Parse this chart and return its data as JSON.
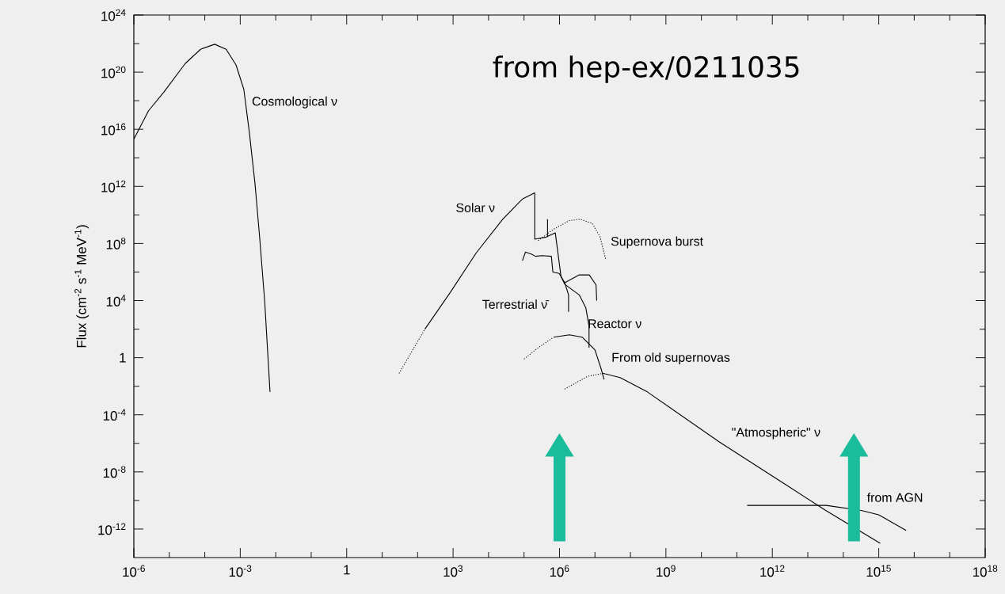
{
  "chart_data": {
    "type": "line",
    "log": "xy",
    "ylabel": "Flux  (cm$^{-2}$ s$^{-1}$ MeV$^{-1}$)",
    "xlim": [
      1e-06,
      1e+18
    ],
    "ylim": [
      1e-14,
      1e+24
    ],
    "xticks": [
      {
        "value": 1e-06,
        "label": "10$^{-6}$"
      },
      {
        "value": 1e-05,
        "label": null
      },
      {
        "value": 0.0001,
        "label": null
      },
      {
        "value": 0.001,
        "label": "10$^{-3}$"
      },
      {
        "value": 0.01,
        "label": null
      },
      {
        "value": 0.1,
        "label": null
      },
      1,
      {
        "value": 10,
        "label": null
      },
      {
        "value": 100,
        "label": null
      },
      {
        "value": 1000,
        "label": "10$^{3}$"
      },
      {
        "value": 10000,
        "label": null
      },
      {
        "value": 100000,
        "label": null
      },
      {
        "value": 1000000.0,
        "label": "10$^{6}$"
      },
      {
        "value": 10000000.0,
        "label": null
      },
      {
        "value": 100000000.0,
        "label": null
      },
      {
        "value": 1000000000.0,
        "label": "10$^{9}$"
      },
      {
        "value": 10000000000.0,
        "label": null
      },
      {
        "value": 100000000000.0,
        "label": null
      },
      {
        "value": 1000000000000.0,
        "label": "10$^{12}$"
      },
      {
        "value": 10000000000000.0,
        "label": null
      },
      {
        "value": 100000000000000.0,
        "label": null
      },
      {
        "value": 1000000000000000.0,
        "label": "10$^{15}$"
      },
      {
        "value": 1e+16,
        "label": null
      },
      {
        "value": 1e+17,
        "label": null
      },
      {
        "value": 1e+18,
        "label": "10$^{18}$"
      }
    ],
    "yticks": [
      {
        "value": 1e-12,
        "label": "10$^{-12}$"
      },
      {
        "value": 1e-10,
        "label": null
      },
      {
        "value": 1e-08,
        "label": "10$^{-8}$"
      },
      {
        "value": 1e-06,
        "label": null
      },
      {
        "value": 0.0001,
        "label": "10$^{-4}$"
      },
      {
        "value": 0.01,
        "label": null
      },
      1,
      {
        "value": 100,
        "label": null
      },
      {
        "value": 10000,
        "label": "10$^{4}$"
      },
      {
        "value": 1000000.0,
        "label": null
      },
      {
        "value": 100000000.0,
        "label": "10$^{8}$"
      },
      {
        "value": 10000000000.0,
        "label": null
      },
      {
        "value": 1000000000000.0,
        "label": "10$^{12}$"
      },
      {
        "value": 100000000000000.0,
        "label": null
      },
      {
        "value": 1e+16,
        "label": "10$^{16}$"
      },
      {
        "value": 1e+18,
        "label": null
      },
      {
        "value": 1e+20,
        "label": "10$^{20}$"
      },
      {
        "value": 1e+22,
        "label": null
      },
      {
        "value": 1e+24,
        "label": "10$^{24}$"
      }
    ],
    "series": [
      {
        "color": "#000000",
        "line_style": "solid",
        "x": [
          1e-06,
          2.6e-06,
          7e-06,
          2.8e-05,
          7.6e-05,
          0.00019,
          0.0004,
          0.00076,
          0.00126,
          0.0018,
          0.0026,
          0.0035,
          0.0049,
          0.0069
        ],
        "values": [
          2000000000000000.0,
          2e+17,
          4e+18,
          4e+20,
          4e+21,
          9e+21,
          4e+21,
          3.2e+20,
          6.3e+18,
          6300000000000000.0,
          1600000000000.0,
          320000000.0,
          8000,
          0.004
        ]
      },
      {
        "color": "#000000",
        "line_style": "dotted",
        "x": [
          30,
          160
        ],
        "values": [
          0.08,
          100
        ]
      },
      {
        "color": "#000000",
        "line_style": "solid",
        "x": [
          160,
          850,
          4500,
          25000,
          90000,
          200000,
          200000,
          420000,
          760000,
          1100000.0,
          1400000.0
        ],
        "values": [
          100,
          40000,
          22000000.0,
          5000000000.0,
          130000000000.0,
          350000000000.0,
          200000000.0,
          280000000.0,
          560000000.0,
          500000,
          140000
        ]
      },
      {
        "color": "#000000",
        "line_style": "solid",
        "x": [
          460000,
          460000
        ],
        "values": [
          280000000.0,
          5000000000.0
        ]
      },
      {
        "color": "#000000",
        "line_style": "solid",
        "x": [
          1400000.0,
          3600000.0,
          5500000.0,
          6800000.0,
          6800000.0
        ],
        "values": [
          140000,
          25000,
          3200,
          160,
          5
        ]
      },
      {
        "color": "#000000",
        "line_style": "solid",
        "x": [
          1400000.0,
          3600000.0,
          6900000.0,
          10700000.0,
          11200000.0
        ],
        "values": [
          180000,
          630000,
          630000,
          126000,
          10000
        ]
      },
      {
        "color": "#000000",
        "line_style": "solid",
        "x": [
          90000,
          110000,
          160000,
          210000,
          320000,
          590000,
          650000,
          980000,
          1400000.0,
          1800000.0,
          1800000.0
        ],
        "values": [
          6300000.0,
          25000000.0,
          18000000.0,
          12600000.0,
          14000000.0,
          12600000.0,
          1000000.0,
          800000,
          180000,
          25000,
          1600
        ]
      },
      {
        "color": "#000000",
        "line_style": "dotted",
        "x": [
          250000,
          680000,
          1900000.0,
          3800000.0,
          8500000.0,
          14000000.0,
          20000000.0
        ],
        "values": [
          160000000.0,
          1000000000.0,
          4000000000.0,
          5000000000.0,
          2500000000.0,
          280000000.0,
          8000000.0
        ]
      },
      {
        "color": "#000000",
        "line_style": "dotted",
        "x": [
          100000,
          250000,
          680000
        ],
        "values": [
          0.8,
          5,
          27
        ]
      },
      {
        "color": "#000000",
        "line_style": "solid",
        "x": [
          680000,
          1900000.0,
          4400000.0,
          10000000.0,
          15000000.0,
          17000000.0,
          18000000.0
        ],
        "values": [
          27,
          40,
          27,
          3.5,
          0.16,
          0.05,
          0.03
        ]
      },
      {
        "color": "#000000",
        "line_style": "dotted",
        "x": [
          1400000.0,
          6200000.0,
          17000000.0
        ],
        "values": [
          0.0063,
          0.05,
          0.08
        ]
      },
      {
        "color": "#000000",
        "line_style": "solid",
        "x": [
          17000000.0,
          51000000.0,
          300000000.0,
          32000000000.0,
          2400000000000.0,
          32000000000000.0,
          1100000000000000.0
        ],
        "values": [
          0.08,
          0.04,
          0.004,
          1.26e-06,
          1.26e-09,
          2e-11,
          1e-13
        ]
      },
      {
        "color": "#000000",
        "line_style": "solid",
        "x": [
          195000000000.0,
          33000000000000.0,
          320000000000000.0,
          1000000000000000.0,
          5900000000000000.0
        ],
        "values": [
          4.5e-11,
          4.5e-11,
          2e-11,
          1e-11,
          8e-13
        ]
      }
    ],
    "ref_lines": [
      {
        "axis": "x",
        "value": 1000000.0,
        "color": "#1abc9c"
      },
      {
        "axis": "x",
        "value": 200000000000000.0,
        "color": "#1abc9c"
      }
    ],
    "annotations": [
      "from hep-ex/0211035",
      "Cosmological ν",
      "Solar ν",
      "Supernova burst",
      "Terrestrial ν̄",
      "Reactor ν",
      "From old supernovas",
      "\"Atmospheric\" ν",
      "from AGN"
    ]
  }
}
